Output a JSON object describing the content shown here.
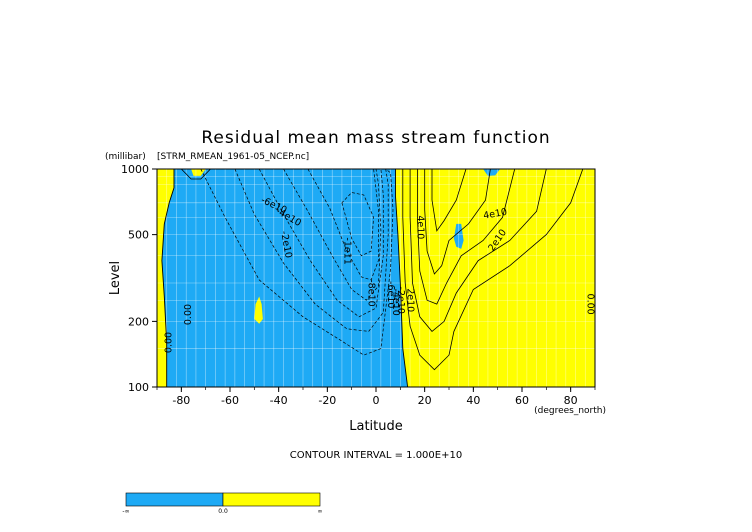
{
  "chart_data": {
    "type": "heatmap",
    "title": "Residual mean mass stream function",
    "subtitle": "[STRM_RMEAN_1961-05_NCEP.nc]",
    "xlabel": "Latitude",
    "xunit": "(degrees_north)",
    "ylabel": "Level",
    "yunit": "(millibar)",
    "xlim": [
      -90,
      90
    ],
    "ylim": [
      1000,
      100
    ],
    "y_scale": "log",
    "x_ticks": [
      "-80",
      "-60",
      "-40",
      "-20",
      "0",
      "20",
      "40",
      "60",
      "80"
    ],
    "x_tick_values": [
      -80,
      -60,
      -40,
      -20,
      0,
      20,
      40,
      60,
      80
    ],
    "y_ticks": [
      "100",
      "200",
      "500",
      "1000"
    ],
    "y_tick_values": [
      100,
      200,
      500,
      1000
    ],
    "grid": true,
    "contour_interval_text": "CONTOUR INTERVAL = 1.000E+10",
    "colorbar": {
      "labels": [
        "-∞",
        "0.0",
        "∞"
      ],
      "colors": [
        "#1EAAF5",
        "#FFFF00"
      ]
    },
    "colors": {
      "negative": "#1EAAF5",
      "positive": "#FFFF00",
      "grid": "#ffffff"
    },
    "contour_labels": [
      {
        "text": "0.00",
        "lat": -85,
        "p": 160,
        "rot": -90
      },
      {
        "text": "0.00",
        "lat": -77,
        "p": 215,
        "rot": -90
      },
      {
        "text": "-2e10",
        "lat": -37,
        "p": 450,
        "rot": 80
      },
      {
        "text": "-4e10",
        "lat": -36,
        "p": 600,
        "rot": 30
      },
      {
        "text": "-6e10",
        "lat": -42,
        "p": 680,
        "rot": 25
      },
      {
        "text": "-1e11",
        "lat": -12,
        "p": 420,
        "rot": 90
      },
      {
        "text": "-8e10",
        "lat": -2,
        "p": 270,
        "rot": 90
      },
      {
        "text": "-6e10",
        "lat": 6,
        "p": 265,
        "rot": 90
      },
      {
        "text": "-4e10",
        "lat": 8,
        "p": 245,
        "rot": 90
      },
      {
        "text": "-2e10",
        "lat": 10,
        "p": 250,
        "rot": 90
      },
      {
        "text": "2e10",
        "lat": 14,
        "p": 250,
        "rot": 90
      },
      {
        "text": "4e10",
        "lat": 18,
        "p": 540,
        "rot": 90
      },
      {
        "text": "2e10",
        "lat": 50,
        "p": 470,
        "rot": -55
      },
      {
        "text": "4e10",
        "lat": 49,
        "p": 620,
        "rot": -10
      },
      {
        "text": "0.00",
        "lat": 88,
        "p": 240,
        "rot": 90
      }
    ]
  }
}
